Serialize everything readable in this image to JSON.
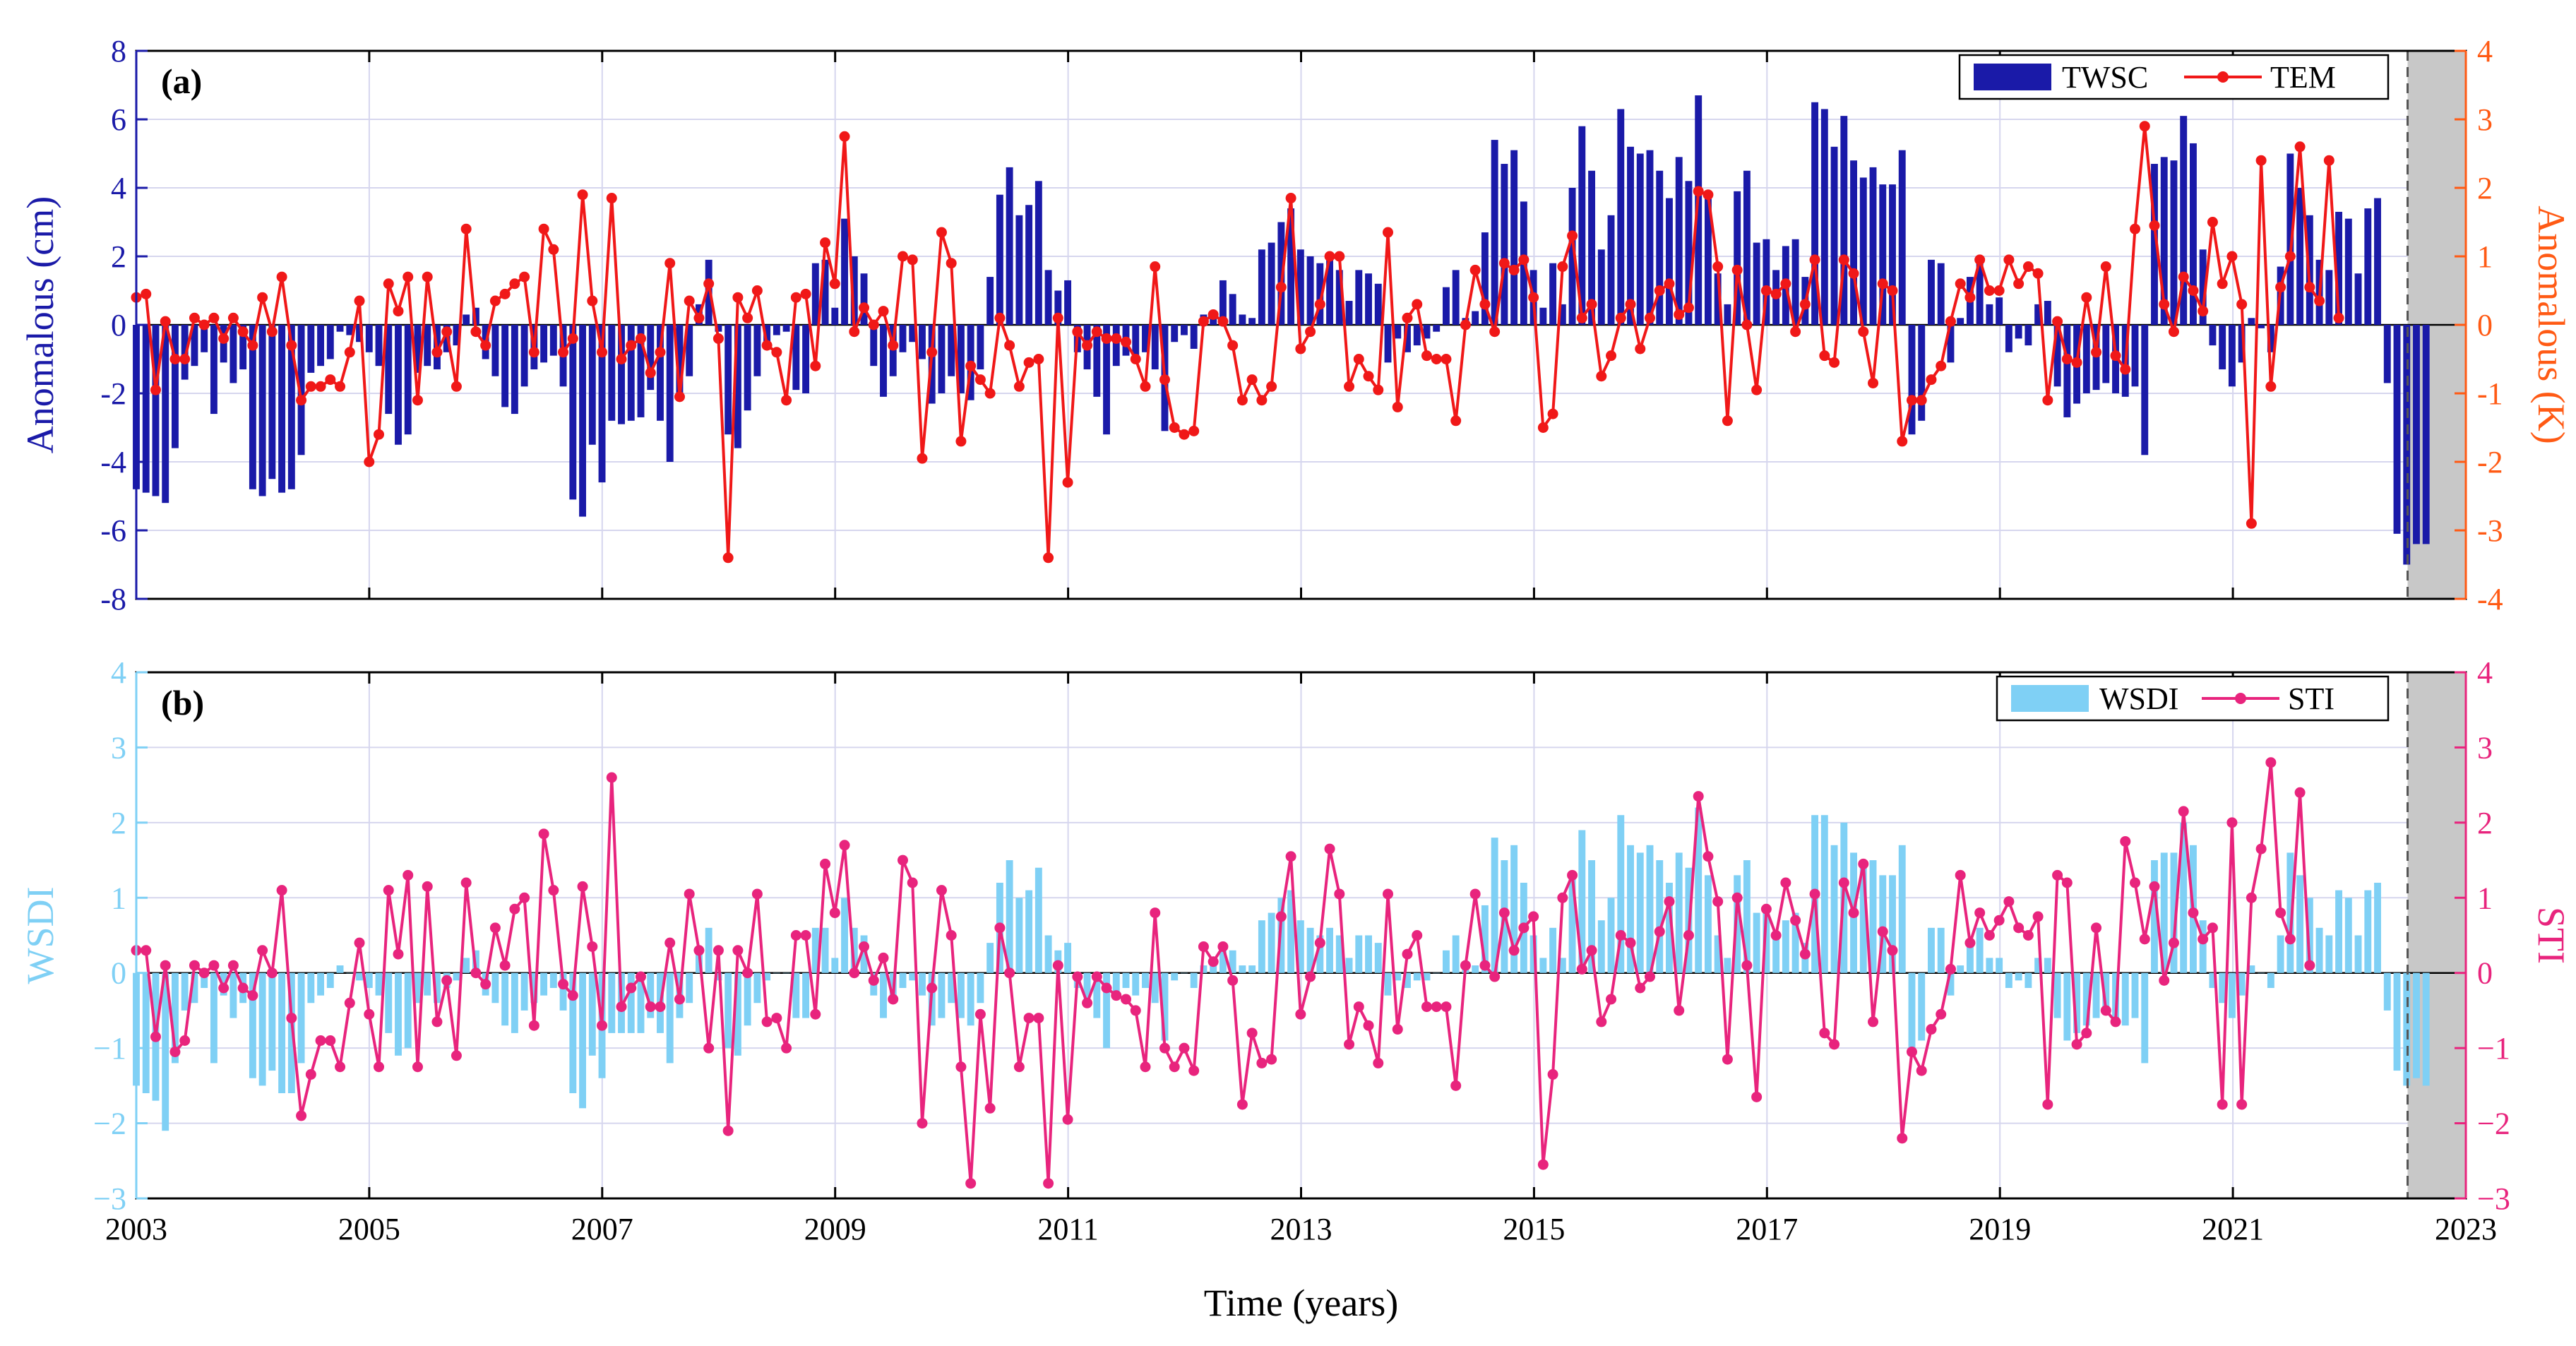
{
  "figure": {
    "xlabel": "Time (years)",
    "x_ticks": [
      "2003",
      "2005",
      "2007",
      "2009",
      "2011",
      "2013",
      "2015",
      "2017",
      "2019",
      "2021",
      "2023"
    ]
  },
  "colors": {
    "twsc": "#1a1aa8",
    "tem": "#f01818",
    "tem_axis": "#ff5a14",
    "wsdi": "#7fd0f5",
    "wsdi_axis": "#7fd0f5",
    "sti": "#e8247d",
    "sti_axis": "#e8247d",
    "shade": "#c8c8c8",
    "grid": "#d6d6ee"
  },
  "chart_data": [
    {
      "type": "bar",
      "panel_label": "(a)",
      "legend_position": "top-right",
      "xlim": [
        2003,
        2023
      ],
      "x_start": 2003.0,
      "x_step": 0.0833,
      "shaded_range": [
        2022.5,
        2023
      ],
      "left_axis": {
        "label": "Anomalous (cm)",
        "ylim": [
          -8,
          8
        ],
        "ticks": [
          "-8",
          "-6",
          "-4",
          "-2",
          "0",
          "2",
          "4",
          "6",
          "8"
        ]
      },
      "right_axis": {
        "label": "Anomalous (K)",
        "ylim": [
          -4,
          4
        ],
        "ticks": [
          "-4",
          "-3",
          "-2",
          "-1",
          "0",
          "1",
          "2",
          "3",
          "4"
        ]
      },
      "series": [
        {
          "name": "TWSC",
          "kind": "bar",
          "axis": "left",
          "values": [
            -4.8,
            -4.9,
            -5.0,
            -5.2,
            -3.6,
            -1.6,
            -1.2,
            -0.8,
            -2.6,
            -1.1,
            -1.7,
            -1.3,
            -4.8,
            -5.0,
            -4.5,
            -4.9,
            -4.8,
            -3.8,
            -1.4,
            -1.2,
            -1.0,
            -0.2,
            -0.3,
            -0.5,
            -0.8,
            -1.2,
            -2.6,
            -3.5,
            -3.2,
            -1.4,
            -1.2,
            -1.3,
            -0.8,
            -0.6,
            0.3,
            0.5,
            -1.0,
            -1.5,
            -2.4,
            -2.6,
            -1.8,
            -1.3,
            -1.1,
            -0.9,
            -1.8,
            -5.1,
            -5.6,
            -3.5,
            -4.6,
            -2.8,
            -2.9,
            -2.8,
            -2.7,
            -1.9,
            -2.8,
            -4.0,
            -2.0,
            -1.5,
            0.6,
            1.9,
            -0.2,
            -3.2,
            -3.6,
            -2.5,
            -1.5,
            -0.5,
            -0.3,
            -0.2,
            -1.9,
            -2.0,
            1.8,
            1.9,
            0.5,
            3.1,
            2.0,
            1.5,
            -1.2,
            -2.1,
            -1.5,
            -0.8,
            -0.5,
            -1.0,
            -2.3,
            -2.0,
            -1.5,
            -2.0,
            -2.2,
            -1.3,
            1.4,
            3.8,
            4.6,
            3.2,
            3.5,
            4.2,
            1.6,
            1.0,
            1.3,
            -0.8,
            -1.3,
            -2.1,
            -3.2,
            -1.2,
            -0.9,
            -1.1,
            -0.8,
            -1.3,
            -3.1,
            -0.5,
            -0.3,
            -0.7,
            0.3,
            0.4,
            1.3,
            0.9,
            0.3,
            0.2,
            2.2,
            2.4,
            3.0,
            3.4,
            2.2,
            2.0,
            1.8,
            1.9,
            1.6,
            0.7,
            1.6,
            1.5,
            1.2,
            -1.1,
            -0.4,
            -0.8,
            -0.6,
            -0.4,
            -0.2,
            1.1,
            1.6,
            0.2,
            0.4,
            2.7,
            5.4,
            4.7,
            5.1,
            3.6,
            1.6,
            0.5,
            1.8,
            0.6,
            4.0,
            5.8,
            4.5,
            2.2,
            3.2,
            6.3,
            5.2,
            5.0,
            5.1,
            4.5,
            3.7,
            4.9,
            4.2,
            6.7,
            3.9,
            1.5,
            0.6,
            3.9,
            4.5,
            2.4,
            2.5,
            1.6,
            2.3,
            2.5,
            1.4,
            6.5,
            6.3,
            5.2,
            6.1,
            4.8,
            4.3,
            4.6,
            4.1,
            4.1,
            5.1,
            -3.2,
            -2.8,
            1.9,
            1.8,
            -1.1,
            0.2,
            1.4,
            1.9,
            0.6,
            0.8,
            -0.8,
            -0.4,
            -0.6,
            0.6,
            0.7,
            -1.8,
            -2.7,
            -2.3,
            -2.0,
            -1.9,
            -1.7,
            -2.0,
            -2.1,
            -1.8,
            -3.8,
            4.7,
            4.9,
            4.8,
            6.1,
            5.3,
            2.2,
            -0.6,
            -1.3,
            -1.8,
            -1.1,
            0.2,
            -0.1,
            -0.8,
            1.7,
            5.0,
            4.0,
            3.2,
            1.9,
            1.6,
            3.3,
            3.1,
            1.5,
            3.4,
            3.7,
            -1.7,
            -6.1,
            -7.0,
            -6.4,
            -6.4
          ]
        },
        {
          "name": "TEM",
          "kind": "line",
          "axis": "right",
          "values": [
            0.4,
            0.45,
            -0.95,
            0.05,
            -0.5,
            -0.5,
            0.1,
            0.0,
            0.1,
            -0.2,
            0.1,
            -0.1,
            -0.3,
            0.4,
            -0.1,
            0.7,
            -0.3,
            -1.1,
            -0.9,
            -0.9,
            -0.8,
            -0.9,
            -0.4,
            0.35,
            -2.0,
            -1.6,
            0.6,
            0.2,
            0.7,
            -1.1,
            0.7,
            -0.4,
            -0.1,
            -0.9,
            1.4,
            -0.1,
            -0.3,
            0.35,
            0.45,
            0.6,
            0.7,
            -0.4,
            1.4,
            1.1,
            -0.4,
            -0.2,
            1.9,
            0.35,
            -0.4,
            1.85,
            -0.5,
            -0.3,
            -0.2,
            -0.7,
            -0.4,
            0.9,
            -1.05,
            0.35,
            0.1,
            0.6,
            -0.2,
            -3.4,
            0.4,
            0.1,
            0.5,
            -0.3,
            -0.4,
            -1.1,
            0.4,
            0.45,
            -0.6,
            1.2,
            0.6,
            2.75,
            -0.1,
            0.25,
            0.0,
            0.2,
            -0.3,
            1.0,
            0.95,
            -1.95,
            -0.4,
            1.35,
            0.9,
            -1.7,
            -0.6,
            -0.8,
            -1.0,
            0.1,
            -0.3,
            -0.9,
            -0.55,
            -0.5,
            -3.4,
            0.1,
            -2.3,
            -0.1,
            -0.3,
            -0.1,
            -0.2,
            -0.2,
            -0.25,
            -0.5,
            -0.9,
            0.85,
            -0.8,
            -1.5,
            -1.6,
            -1.55,
            0.05,
            0.15,
            0.05,
            -0.3,
            -1.1,
            -0.8,
            -1.1,
            -0.9,
            0.55,
            1.85,
            -0.35,
            -0.1,
            0.3,
            1.0,
            1.0,
            -0.9,
            -0.5,
            -0.75,
            -0.95,
            1.35,
            -1.2,
            0.1,
            0.3,
            -0.45,
            -0.5,
            -0.5,
            -1.4,
            0.0,
            0.8,
            0.3,
            -0.1,
            0.9,
            0.8,
            0.95,
            0.4,
            -1.5,
            -1.3,
            0.85,
            1.3,
            0.1,
            0.3,
            -0.75,
            -0.45,
            0.1,
            0.3,
            -0.35,
            0.1,
            0.5,
            0.6,
            0.15,
            0.25,
            1.95,
            1.9,
            0.85,
            -1.4,
            0.8,
            0.0,
            -0.95,
            0.5,
            0.45,
            0.6,
            -0.1,
            0.3,
            0.95,
            -0.45,
            -0.55,
            0.95,
            0.75,
            -0.1,
            -0.85,
            0.6,
            0.5,
            -1.7,
            -1.1,
            -1.1,
            -0.8,
            -0.6,
            0.05,
            0.6,
            0.4,
            0.95,
            0.5,
            0.5,
            0.95,
            0.6,
            0.85,
            0.75,
            -1.1,
            0.05,
            -0.5,
            -0.55,
            0.4,
            -0.4,
            0.85,
            -0.45,
            -0.65,
            1.4,
            2.9,
            1.45,
            0.3,
            -0.1,
            0.7,
            0.5,
            0.2,
            1.5,
            0.6,
            1.0,
            0.3,
            -2.9,
            2.4,
            -0.9,
            0.55,
            1.0,
            2.6,
            0.55,
            0.35,
            2.4,
            0.1
          ]
        }
      ]
    },
    {
      "type": "bar",
      "panel_label": "(b)",
      "legend_position": "top-right",
      "xlim": [
        2003,
        2023
      ],
      "x_start": 2003.0,
      "x_step": 0.0833,
      "shaded_range": [
        2022.5,
        2023
      ],
      "left_axis": {
        "label": "WSDI",
        "ylim": [
          -3,
          4
        ],
        "ticks": [
          "−3",
          "−2",
          "−1",
          "0",
          "1",
          "2",
          "3",
          "4"
        ]
      },
      "right_axis": {
        "label": "STI",
        "ylim": [
          -3,
          4
        ],
        "ticks": [
          "−3",
          "−2",
          "−1",
          "0",
          "1",
          "2",
          "3",
          "4"
        ]
      },
      "series": [
        {
          "name": "WSDI",
          "kind": "bar",
          "axis": "left",
          "values": [
            -1.5,
            -1.6,
            -1.7,
            -2.1,
            -1.2,
            -0.5,
            -0.4,
            -0.2,
            -1.2,
            -0.3,
            -0.6,
            -0.4,
            -1.4,
            -1.5,
            -1.3,
            -1.6,
            -1.6,
            -1.2,
            -0.4,
            -0.3,
            -0.2,
            0.1,
            0.0,
            -0.1,
            -0.2,
            -0.3,
            -0.8,
            -1.1,
            -1.0,
            -0.4,
            -0.3,
            -0.4,
            -0.2,
            -0.1,
            0.2,
            0.3,
            -0.3,
            -0.4,
            -0.7,
            -0.8,
            -0.5,
            -0.4,
            -0.3,
            -0.2,
            -0.5,
            -1.6,
            -1.8,
            -1.1,
            -1.4,
            -0.8,
            -0.8,
            -0.8,
            -0.8,
            -0.6,
            -0.8,
            -1.2,
            -0.6,
            -0.4,
            0.3,
            0.6,
            -0.1,
            -1.0,
            -1.1,
            -0.7,
            -0.4,
            -0.1,
            0.0,
            0.0,
            -0.6,
            -0.6,
            0.6,
            0.6,
            0.2,
            1.0,
            0.6,
            0.5,
            -0.3,
            -0.6,
            -0.4,
            -0.2,
            -0.1,
            -0.3,
            -0.7,
            -0.6,
            -0.4,
            -0.6,
            -0.7,
            -0.4,
            0.4,
            1.2,
            1.5,
            1.0,
            1.1,
            1.4,
            0.5,
            0.3,
            0.4,
            -0.2,
            -0.4,
            -0.6,
            -1.0,
            -0.3,
            -0.2,
            -0.3,
            -0.2,
            -0.4,
            -0.9,
            -0.1,
            0.0,
            -0.2,
            0.1,
            0.1,
            0.4,
            0.3,
            0.1,
            0.1,
            0.7,
            0.8,
            1.0,
            1.1,
            0.7,
            0.6,
            0.5,
            0.6,
            0.5,
            0.2,
            0.5,
            0.5,
            0.4,
            -0.3,
            -0.1,
            -0.2,
            -0.1,
            -0.1,
            0.0,
            0.3,
            0.5,
            0.1,
            0.1,
            0.9,
            1.8,
            1.5,
            1.7,
            1.2,
            0.5,
            0.2,
            0.6,
            0.2,
            1.3,
            1.9,
            1.5,
            0.7,
            1.0,
            2.1,
            1.7,
            1.6,
            1.7,
            1.5,
            1.2,
            1.6,
            1.4,
            2.2,
            1.3,
            0.5,
            0.2,
            1.3,
            1.5,
            0.8,
            0.8,
            0.5,
            0.7,
            0.8,
            0.4,
            2.1,
            2.1,
            1.7,
            2.0,
            1.6,
            1.4,
            1.5,
            1.3,
            1.3,
            1.7,
            -1.0,
            -0.9,
            0.6,
            0.6,
            -0.3,
            0.1,
            0.4,
            0.6,
            0.2,
            0.2,
            -0.2,
            -0.1,
            -0.2,
            0.2,
            0.2,
            -0.6,
            -0.9,
            -0.8,
            -0.7,
            -0.6,
            -0.5,
            -0.6,
            -0.7,
            -0.6,
            -1.2,
            1.5,
            1.6,
            1.6,
            2.0,
            1.7,
            0.7,
            -0.2,
            -0.4,
            -0.6,
            -0.3,
            0.1,
            0.0,
            -0.2,
            0.5,
            1.6,
            1.3,
            1.0,
            0.6,
            0.5,
            1.1,
            1.0,
            0.5,
            1.1,
            1.2,
            -0.5,
            -1.3,
            -1.5,
            -1.4,
            -1.5
          ]
        },
        {
          "name": "STI",
          "kind": "line",
          "axis": "right",
          "values": [
            0.3,
            0.3,
            -0.85,
            0.1,
            -1.05,
            -0.9,
            0.1,
            0.0,
            0.1,
            -0.2,
            0.1,
            -0.2,
            -0.3,
            0.3,
            0.0,
            1.1,
            -0.6,
            -1.9,
            -1.35,
            -0.9,
            -0.9,
            -1.25,
            -0.4,
            0.4,
            -0.55,
            -1.25,
            1.1,
            0.25,
            1.3,
            -1.25,
            1.15,
            -0.65,
            -0.1,
            -1.1,
            1.2,
            0.0,
            -0.15,
            0.6,
            0.1,
            0.85,
            1.0,
            -0.7,
            1.85,
            1.1,
            -0.15,
            -0.3,
            1.15,
            0.35,
            -0.7,
            2.6,
            -0.45,
            -0.2,
            -0.05,
            -0.45,
            -0.45,
            0.4,
            -0.35,
            1.05,
            0.3,
            -1.0,
            0.3,
            -2.1,
            0.3,
            0.0,
            1.05,
            -0.65,
            -0.6,
            -1.0,
            0.5,
            0.5,
            -0.55,
            1.45,
            0.8,
            1.7,
            0.0,
            0.35,
            -0.1,
            0.2,
            -0.35,
            1.5,
            1.2,
            -2.0,
            -0.2,
            1.1,
            0.5,
            -1.25,
            -2.8,
            -0.55,
            -1.8,
            0.6,
            0.0,
            -1.25,
            -0.6,
            -0.6,
            -2.8,
            0.1,
            -1.95,
            -0.05,
            -0.4,
            -0.05,
            -0.2,
            -0.3,
            -0.35,
            -0.5,
            -1.25,
            0.8,
            -1.0,
            -1.25,
            -1.0,
            -1.3,
            0.35,
            0.15,
            0.35,
            -0.1,
            -1.75,
            -0.8,
            -1.2,
            -1.15,
            0.75,
            1.55,
            -0.55,
            -0.05,
            0.4,
            1.65,
            1.05,
            -0.95,
            -0.45,
            -0.7,
            -1.2,
            1.05,
            -0.75,
            0.25,
            0.5,
            -0.45,
            -0.45,
            -0.45,
            -1.5,
            0.1,
            1.05,
            0.1,
            -0.05,
            0.8,
            0.3,
            0.6,
            0.75,
            -2.55,
            -1.35,
            1.0,
            1.3,
            0.05,
            0.3,
            -0.65,
            -0.35,
            0.5,
            0.4,
            -0.2,
            -0.05,
            0.55,
            0.95,
            -0.5,
            0.5,
            2.35,
            1.55,
            0.95,
            -1.15,
            1.0,
            0.1,
            -1.65,
            0.85,
            0.5,
            1.2,
            0.7,
            0.25,
            1.05,
            -0.8,
            -0.95,
            1.2,
            0.8,
            1.45,
            -0.65,
            0.55,
            0.3,
            -2.2,
            -1.05,
            -1.3,
            -0.75,
            -0.55,
            0.05,
            1.3,
            0.4,
            0.8,
            0.5,
            0.7,
            0.95,
            0.6,
            0.5,
            0.75,
            -1.75,
            1.3,
            1.2,
            -0.95,
            -0.8,
            0.6,
            -0.5,
            -0.65,
            1.75,
            1.2,
            0.45,
            1.15,
            -0.1,
            0.4,
            2.15,
            0.8,
            0.45,
            0.6,
            -1.75,
            2.0,
            -1.75,
            1.0,
            1.65,
            2.8,
            0.8,
            0.45,
            2.4,
            0.1
          ]
        }
      ]
    }
  ]
}
